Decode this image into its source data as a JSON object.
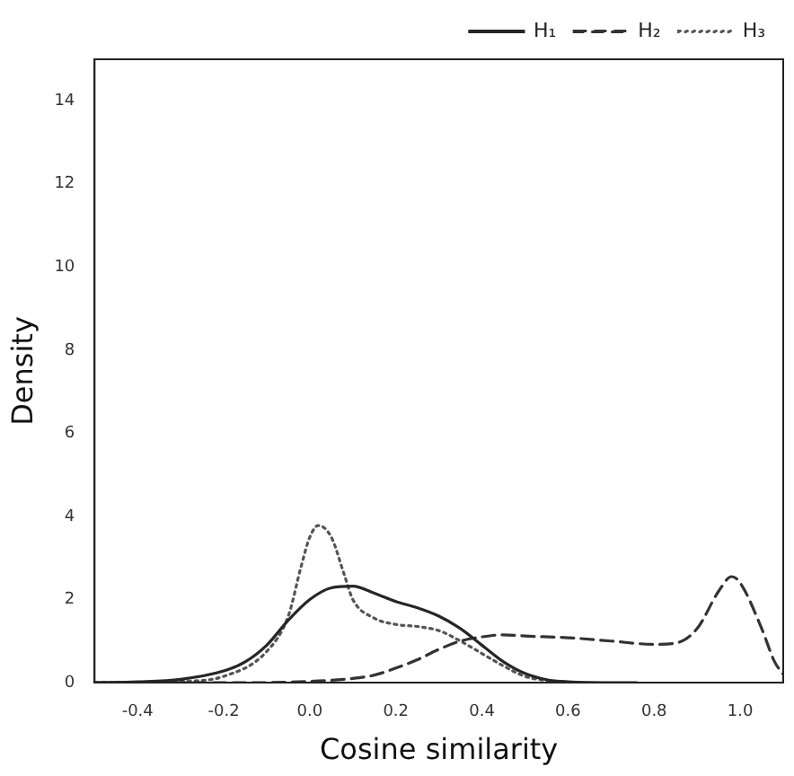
{
  "chart_data": {
    "type": "line",
    "xlabel": "Cosine similarity",
    "ylabel": "Density",
    "xlim": [
      -0.5,
      1.1
    ],
    "ylim": [
      0,
      15
    ],
    "xticks": [
      -0.4,
      -0.2,
      {
        "value": 0,
        "label": "0.0"
      },
      0.2,
      0.4,
      0.6,
      0.8,
      {
        "value": 1,
        "label": "1.0"
      }
    ],
    "yticks": [
      0,
      2,
      4,
      6,
      8,
      10,
      12,
      14
    ],
    "grid": false,
    "legend": "top right",
    "marker": "none",
    "series": [
      {
        "name": "H₁",
        "color": "#262626",
        "line_style": "solid",
        "x": [
          -0.5,
          -0.4,
          -0.3,
          -0.2,
          -0.15,
          -0.1,
          -0.05,
          0,
          0.05,
          0.1,
          0.15,
          0.2,
          0.25,
          0.3,
          0.35,
          0.4,
          0.45,
          0.5,
          0.55,
          0.6,
          0.7,
          0.76
        ],
        "values": [
          0,
          0.02,
          0.08,
          0.28,
          0.5,
          0.9,
          1.5,
          2.0,
          2.28,
          2.32,
          2.15,
          1.95,
          1.8,
          1.6,
          1.3,
          0.9,
          0.5,
          0.22,
          0.07,
          0.02,
          0,
          0
        ]
      },
      {
        "name": "H₂",
        "color": "#333333",
        "line_style": "dashed",
        "x": [
          -0.5,
          -0.1,
          0,
          0.1,
          0.15,
          0.2,
          0.25,
          0.3,
          0.35,
          0.4,
          0.45,
          0.5,
          0.6,
          0.7,
          0.8,
          0.85,
          0.9,
          0.95,
          0.98,
          1.0,
          1.05,
          1.08,
          1.1
        ],
        "values": [
          0,
          0,
          0.03,
          0.1,
          0.18,
          0.35,
          0.55,
          0.8,
          1.0,
          1.1,
          1.15,
          1.12,
          1.08,
          1.0,
          0.92,
          0.95,
          1.3,
          2.2,
          2.55,
          2.4,
          1.3,
          0.5,
          0.2
        ]
      },
      {
        "name": "H₃",
        "color": "#555555",
        "line_style": "dotted",
        "x": [
          -0.5,
          -0.3,
          -0.2,
          -0.1,
          -0.05,
          -0.02,
          0,
          0.02,
          0.05,
          0.08,
          0.1,
          0.15,
          0.2,
          0.25,
          0.3,
          0.35,
          0.4,
          0.45,
          0.5,
          0.55,
          0.6
        ],
        "values": [
          0,
          0.03,
          0.15,
          0.75,
          1.6,
          2.8,
          3.5,
          3.78,
          3.5,
          2.6,
          2.0,
          1.55,
          1.4,
          1.35,
          1.25,
          1.0,
          0.7,
          0.4,
          0.15,
          0.05,
          0.01
        ]
      }
    ]
  }
}
